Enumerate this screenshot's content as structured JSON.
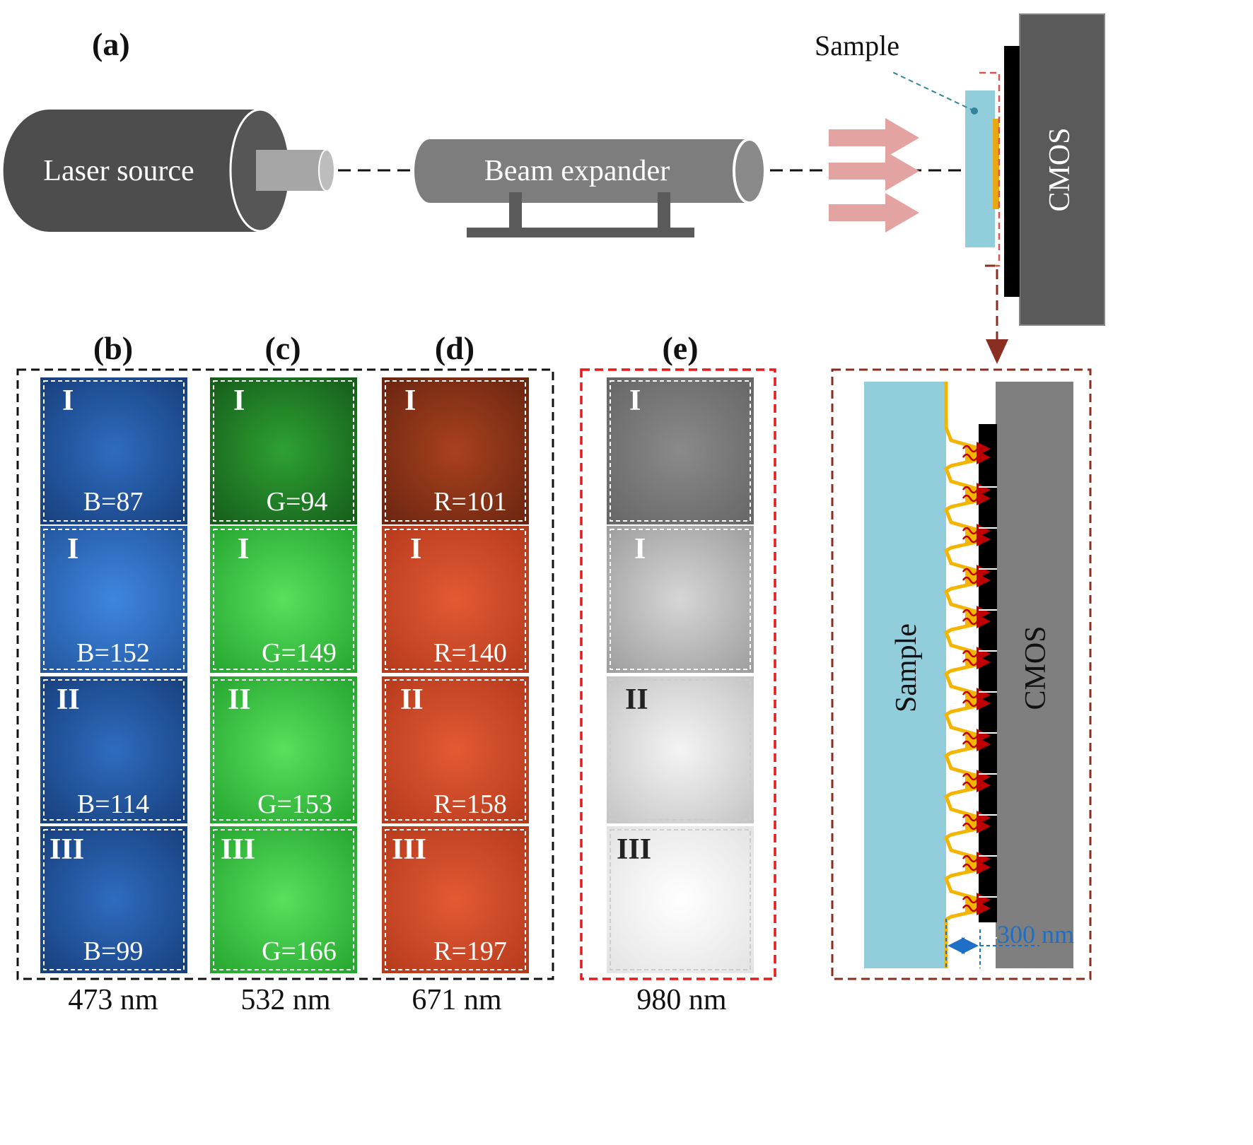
{
  "panels": {
    "a": "(a)",
    "b": "(b)",
    "c": "(c)",
    "d": "(d)",
    "e": "(e)"
  },
  "setup": {
    "laser_source": "Laser source",
    "beam_expander": "Beam expander",
    "sample": "Sample",
    "cmos": "CMOS"
  },
  "detail": {
    "sample": "Sample",
    "cmos": "CMOS",
    "gap": "300 nm"
  },
  "columns": [
    {
      "id": "b",
      "wavelength": "473 nm",
      "tint": "#1d4f9a",
      "rows": [
        {
          "roman": "I",
          "value": "B=87"
        },
        {
          "roman": "I",
          "value": "B=152"
        },
        {
          "roman": "II",
          "value": "B=114"
        },
        {
          "roman": "III",
          "value": "B=99"
        }
      ]
    },
    {
      "id": "c",
      "wavelength": "532 nm",
      "tint": "#23a62c",
      "rows": [
        {
          "roman": "I",
          "value": "G=94"
        },
        {
          "roman": "I",
          "value": "G=149"
        },
        {
          "roman": "II",
          "value": "G=153"
        },
        {
          "roman": "III",
          "value": "G=166"
        }
      ]
    },
    {
      "id": "d",
      "wavelength": "671 nm",
      "tint": "#c8401f",
      "rows": [
        {
          "roman": "I",
          "value": "R=101"
        },
        {
          "roman": "I",
          "value": "R=140"
        },
        {
          "roman": "II",
          "value": "R=158"
        },
        {
          "roman": "III",
          "value": "R=197"
        }
      ]
    },
    {
      "id": "e",
      "wavelength": "980 nm",
      "tint": "#9a9a9a",
      "rows": [
        {
          "roman": "I",
          "value": ""
        },
        {
          "roman": "I",
          "value": ""
        },
        {
          "roman": "II",
          "value": ""
        },
        {
          "roman": "III",
          "value": ""
        }
      ]
    }
  ]
}
